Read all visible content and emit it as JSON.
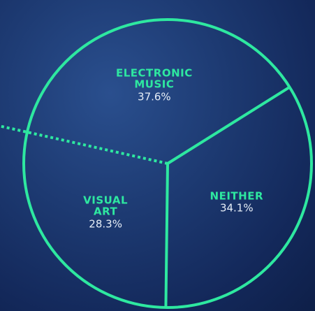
{
  "chart_data": {
    "type": "pie",
    "categories": [
      "ELECTRONIC MUSIC",
      "NEITHER",
      "VISUAL ART"
    ],
    "values": [
      37.6,
      34.1,
      28.3
    ],
    "value_labels": [
      "37.6%",
      "34.1%",
      "28.3%"
    ],
    "color": "#2ee8a0"
  }
}
